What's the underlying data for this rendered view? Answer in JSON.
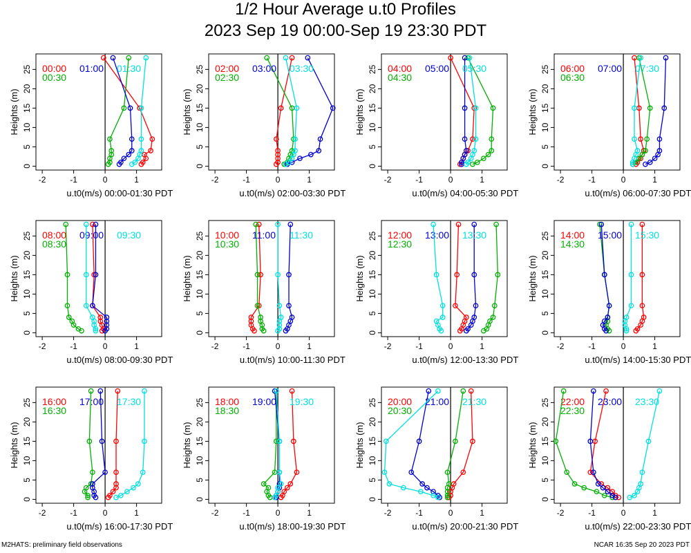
{
  "header": {
    "title": "1/2 Hour Average u.t0 Profiles",
    "subtitle": "2023 Sep 19 00:00-Sep 19 23:30 PDT"
  },
  "footer": {
    "left": "M2HATS: preliminary field observations",
    "right": "NCAR 16:35 Sep 20 2023 PDT"
  },
  "colors": {
    "red": "#ff0000",
    "green": "#00b000",
    "blue": "#0000d0",
    "cyan": "#00e0e0"
  },
  "chart_data": {
    "type": "line",
    "ylabel": "Heights (m)",
    "xlim": [
      -2.2,
      1.8
    ],
    "ylim": [
      -1,
      29
    ],
    "xticks": [
      -2,
      -1,
      0,
      1
    ],
    "yticks": [
      0,
      5,
      10,
      15,
      20,
      25
    ],
    "heights": [
      0.5,
      1,
      2,
      3,
      4,
      7,
      15,
      28
    ],
    "panels": [
      {
        "xlabel": "u.t0(m/s) 00:00-01:30 PDT",
        "series": [
          {
            "name": "00:00",
            "color": "red",
            "values": [
              1.15,
              1.2,
              1.3,
              1.25,
              1.45,
              1.5,
              1.1,
              -0.05
            ]
          },
          {
            "name": "00:30",
            "color": "green",
            "values": [
              0.1,
              0.15,
              0.15,
              0.2,
              0.2,
              0.15,
              0.6,
              0.75
            ]
          },
          {
            "name": "01:00",
            "color": "blue",
            "values": [
              0.45,
              0.5,
              0.6,
              0.75,
              0.85,
              0.85,
              0.8,
              0.25
            ]
          },
          {
            "name": "01:30",
            "color": "cyan",
            "values": [
              0.85,
              0.95,
              1.05,
              1.1,
              1.15,
              1.15,
              1.15,
              1.3
            ]
          }
        ]
      },
      {
        "xlabel": "u.t0(m/s) 02:00-03:30 PDT",
        "series": [
          {
            "name": "02:00",
            "color": "red",
            "values": [
              -0.05,
              0.0,
              0.0,
              0.0,
              0.0,
              -0.05,
              0.1,
              0.45
            ]
          },
          {
            "name": "02:30",
            "color": "green",
            "values": [
              0.2,
              0.3,
              0.35,
              0.4,
              0.45,
              0.5,
              0.45,
              -0.35
            ]
          },
          {
            "name": "03:00",
            "color": "blue",
            "values": [
              0.3,
              0.45,
              0.7,
              1.05,
              1.3,
              1.35,
              1.75,
              0.95
            ]
          },
          {
            "name": "03:30",
            "color": "cyan",
            "values": [
              0.25,
              0.35,
              0.45,
              0.5,
              0.55,
              0.55,
              0.6,
              0.25
            ]
          }
        ]
      },
      {
        "xlabel": "u.t0(m/s) 04:00-05:30 PDT",
        "series": [
          {
            "name": "04:00",
            "color": "red",
            "values": [
              0.3,
              0.35,
              0.4,
              0.45,
              0.55,
              0.7,
              0.75,
              0.0
            ]
          },
          {
            "name": "04:30",
            "color": "green",
            "values": [
              0.7,
              0.85,
              1.05,
              1.2,
              1.3,
              1.3,
              1.35,
              0.55
            ]
          },
          {
            "name": "05:00",
            "color": "blue",
            "values": [
              0.35,
              0.35,
              0.4,
              0.45,
              0.5,
              0.45,
              0.45,
              0.45
            ]
          },
          {
            "name": "05:30",
            "color": "cyan",
            "values": [
              0.5,
              0.55,
              0.65,
              0.7,
              0.75,
              0.8,
              0.8,
              0.6
            ]
          }
        ]
      },
      {
        "xlabel": "u.t0(m/s) 06:00-07:30 PDT",
        "series": [
          {
            "name": "06:00",
            "color": "red",
            "values": [
              0.4,
              0.45,
              0.55,
              0.6,
              0.65,
              0.55,
              0.5,
              0.35
            ]
          },
          {
            "name": "06:30",
            "color": "green",
            "values": [
              0.3,
              0.4,
              0.5,
              0.6,
              0.7,
              0.75,
              0.85,
              0.5
            ]
          },
          {
            "name": "07:00",
            "color": "blue",
            "values": [
              0.7,
              0.85,
              1.0,
              1.1,
              1.15,
              1.15,
              1.3,
              1.35
            ]
          },
          {
            "name": "07:30",
            "color": "cyan",
            "values": [
              0.3,
              0.3,
              0.35,
              0.4,
              0.45,
              0.35,
              0.35,
              0.55
            ]
          }
        ]
      },
      {
        "xlabel": "u.t0(m/s) 08:00-09:30 PDT",
        "series": [
          {
            "name": "08:00",
            "color": "red",
            "values": [
              -0.1,
              -0.05,
              -0.1,
              -0.15,
              -0.15,
              -0.4,
              -0.35,
              -0.4
            ]
          },
          {
            "name": "08:30",
            "color": "green",
            "values": [
              -0.75,
              -0.85,
              -1.0,
              -1.05,
              -1.15,
              -1.2,
              -1.2,
              -1.25
            ]
          },
          {
            "name": "09:00",
            "color": "blue",
            "values": [
              0.0,
              0.05,
              0.05,
              0.05,
              0.05,
              -0.4,
              -0.3,
              -0.3
            ]
          },
          {
            "name": "09:30",
            "color": "cyan",
            "values": [
              -0.3,
              -0.3,
              -0.35,
              -0.35,
              -0.4,
              -0.6,
              -0.6,
              -0.6
            ]
          }
        ]
      },
      {
        "xlabel": "u.t0(m/s) 10:00-11:30 PDT",
        "series": [
          {
            "name": "10:00",
            "color": "red",
            "values": [
              -0.75,
              -0.8,
              -0.85,
              -0.85,
              -0.85,
              -0.6,
              -0.55,
              -0.6
            ]
          },
          {
            "name": "10:30",
            "color": "green",
            "values": [
              -0.45,
              -0.5,
              -0.5,
              -0.55,
              -0.55,
              -0.65,
              -0.65,
              -0.7
            ]
          },
          {
            "name": "11:00",
            "color": "blue",
            "values": [
              0.25,
              0.3,
              0.35,
              0.4,
              0.45,
              0.35,
              0.35,
              0.4
            ]
          },
          {
            "name": "11:30",
            "color": "cyan",
            "values": [
              0.0,
              0.05,
              0.05,
              0.05,
              0.1,
              0.05,
              0.0,
              0.0
            ]
          }
        ]
      },
      {
        "xlabel": "u.t0(m/s) 12:00-13:30 PDT",
        "series": [
          {
            "name": "12:00",
            "color": "red",
            "values": [
              0.3,
              0.35,
              0.4,
              0.45,
              0.5,
              0.15,
              0.2,
              0.25
            ]
          },
          {
            "name": "12:30",
            "color": "green",
            "values": [
              1.05,
              1.15,
              1.2,
              1.25,
              1.35,
              1.4,
              1.5,
              1.45
            ]
          },
          {
            "name": "13:00",
            "color": "blue",
            "values": [
              0.5,
              0.55,
              0.65,
              0.7,
              0.75,
              0.8,
              0.75,
              0.75
            ]
          },
          {
            "name": "13:30",
            "color": "cyan",
            "values": [
              -0.3,
              -0.35,
              -0.4,
              -0.45,
              -0.25,
              -0.25,
              -0.45,
              -0.55
            ]
          }
        ]
      },
      {
        "xlabel": "u.t0(m/s) 14:00-15:30 PDT",
        "series": [
          {
            "name": "14:00",
            "color": "red",
            "values": [
              0.4,
              0.45,
              0.55,
              0.6,
              0.65,
              0.6,
              0.6,
              0.6
            ]
          },
          {
            "name": "14:30",
            "color": "green",
            "values": [
              -0.45,
              -0.5,
              -0.55,
              -0.5,
              -0.5,
              -0.45,
              -0.6,
              -0.75
            ]
          },
          {
            "name": "15:00",
            "color": "blue",
            "values": [
              -0.55,
              -0.6,
              -0.65,
              -0.6,
              -0.5,
              -0.45,
              -0.6,
              -0.7
            ]
          },
          {
            "name": "15:30",
            "color": "cyan",
            "values": [
              0.1,
              0.1,
              0.05,
              0.05,
              0.1,
              0.25,
              0.25,
              0.25
            ]
          }
        ]
      },
      {
        "xlabel": "u.t0(m/s) 16:00-17:30 PDT",
        "series": [
          {
            "name": "16:00",
            "color": "red",
            "values": [
              0.1,
              0.15,
              0.25,
              0.35,
              0.35,
              0.35,
              0.35,
              0.4
            ]
          },
          {
            "name": "16:30",
            "color": "green",
            "values": [
              -0.55,
              -0.55,
              -0.65,
              -0.6,
              -0.45,
              -0.4,
              -0.5,
              -0.45
            ]
          },
          {
            "name": "17:00",
            "color": "blue",
            "values": [
              -0.3,
              -0.35,
              -0.35,
              -0.4,
              -0.4,
              0.0,
              -0.1,
              -0.15
            ]
          },
          {
            "name": "17:30",
            "color": "cyan",
            "values": [
              0.35,
              0.5,
              0.7,
              0.9,
              1.05,
              1.2,
              1.25,
              1.25
            ]
          }
        ]
      },
      {
        "xlabel": "u.t0(m/s) 18:00-19:30 PDT",
        "series": [
          {
            "name": "18:00",
            "color": "red",
            "values": [
              0.1,
              0.15,
              0.2,
              0.3,
              0.4,
              0.6,
              0.5,
              0.45
            ]
          },
          {
            "name": "18:30",
            "color": "green",
            "values": [
              -0.25,
              -0.3,
              -0.35,
              -0.3,
              -0.45,
              -0.1,
              -0.05,
              -0.05
            ]
          },
          {
            "name": "19:00",
            "color": "blue",
            "values": [
              -0.05,
              -0.05,
              0.0,
              0.05,
              0.05,
              0.05,
              0.05,
              -0.1
            ]
          },
          {
            "name": "19:30",
            "color": "cyan",
            "values": [
              -0.1,
              -0.05,
              0.0,
              0.0,
              0.1,
              0.05,
              0.05,
              -0.05
            ]
          }
        ]
      },
      {
        "xlabel": "u.t0(m/s) 20:00-21:30 PDT",
        "series": [
          {
            "name": "20:00",
            "color": "red",
            "values": [
              -0.05,
              0.0,
              0.0,
              0.05,
              0.1,
              0.4,
              0.7,
              0.65
            ]
          },
          {
            "name": "20:30",
            "color": "green",
            "values": [
              -0.1,
              -0.1,
              -0.1,
              -0.1,
              -0.05,
              -0.1,
              0.15,
              0.4
            ]
          },
          {
            "name": "21:00",
            "color": "blue",
            "values": [
              -0.35,
              -0.4,
              -0.55,
              -0.75,
              -0.9,
              -1.25,
              -1.0,
              -0.7
            ]
          },
          {
            "name": "21:30",
            "color": "cyan",
            "values": [
              -0.4,
              -0.55,
              -0.95,
              -1.5,
              -1.95,
              -2.1,
              -2.05,
              -0.4
            ]
          }
        ]
      },
      {
        "xlabel": "u.t0(m/s) 22:00-23:30 PDT",
        "series": [
          {
            "name": "22:00",
            "color": "red",
            "values": [
              -0.15,
              -0.25,
              -0.35,
              -0.5,
              -0.7,
              -1.05,
              -0.9,
              -0.55
            ]
          },
          {
            "name": "22:30",
            "color": "green",
            "values": [
              -0.35,
              -0.6,
              -0.85,
              -1.25,
              -1.55,
              -1.8,
              -2.15,
              -1.9
            ]
          },
          {
            "name": "23:00",
            "color": "blue",
            "values": [
              -0.25,
              -0.35,
              -0.5,
              -0.65,
              -0.8,
              -0.95,
              -1.05,
              -0.95
            ]
          },
          {
            "name": "23:30",
            "color": "cyan",
            "values": [
              0.2,
              0.35,
              0.45,
              0.5,
              0.55,
              0.6,
              0.8,
              1.15
            ]
          }
        ]
      }
    ]
  }
}
